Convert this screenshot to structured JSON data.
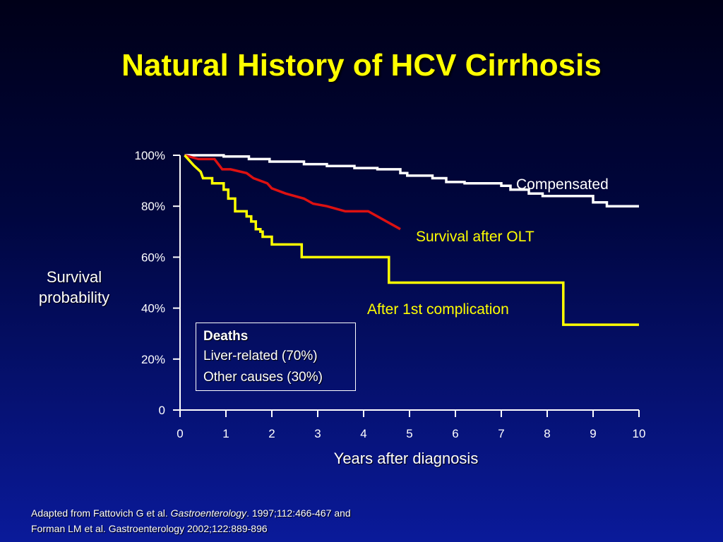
{
  "title": "Natural History of HCV Cirrhosis",
  "deaths_box": {
    "heading": "Deaths",
    "items": [
      "Liver-related (70%)",
      "Other causes (30%)"
    ]
  },
  "source": {
    "line1_prefix": "Adapted from Fattovich G et al. ",
    "line1_journal": "Gastroenterology",
    "line1_suffix": ". 1997;112:466-467 and",
    "line2": "Forman LM et al. Gastroenterology 2002;122:889-896"
  },
  "colors": {
    "title": "#ffff00",
    "compensated": "#ffffff",
    "olt": "#dd1111",
    "complication": "#ffff00",
    "axis": "#ffffff"
  },
  "chart_data": {
    "type": "line",
    "title": "Natural History of HCV Cirrhosis",
    "xlabel": "Years after diagnosis",
    "ylabel": "Survival probability",
    "xlim": [
      0,
      10
    ],
    "ylim": [
      0,
      100
    ],
    "x_ticks": [
      "0",
      "1",
      "2",
      "3",
      "4",
      "5",
      "6",
      "7",
      "8",
      "9",
      "10"
    ],
    "y_ticks": [
      {
        "value": 0,
        "label": "0"
      },
      {
        "value": 20,
        "label": "20%"
      },
      {
        "value": 40,
        "label": "40%"
      },
      {
        "value": 60,
        "label": "60%"
      },
      {
        "value": 80,
        "label": "80%"
      },
      {
        "value": 100,
        "label": "100%"
      }
    ],
    "grid": false,
    "series": [
      {
        "name": "Compensated",
        "color": "#ffffff",
        "label_color": "#ffffff",
        "step": true,
        "points": [
          [
            0.1,
            100
          ],
          [
            0.95,
            100
          ],
          [
            0.95,
            99.5
          ],
          [
            1.5,
            99.5
          ],
          [
            1.5,
            98.5
          ],
          [
            1.95,
            98.5
          ],
          [
            1.95,
            97.5
          ],
          [
            2.7,
            97.5
          ],
          [
            2.7,
            96.5
          ],
          [
            3.2,
            96.5
          ],
          [
            3.2,
            95.8
          ],
          [
            3.8,
            95.8
          ],
          [
            3.8,
            95
          ],
          [
            4.3,
            95
          ],
          [
            4.3,
            94.5
          ],
          [
            4.8,
            94.5
          ],
          [
            4.8,
            93
          ],
          [
            4.95,
            93
          ],
          [
            4.95,
            92
          ],
          [
            5.5,
            92
          ],
          [
            5.5,
            91
          ],
          [
            5.8,
            91
          ],
          [
            5.8,
            89.5
          ],
          [
            6.2,
            89.5
          ],
          [
            6.2,
            89
          ],
          [
            7.0,
            89
          ],
          [
            7.0,
            88
          ],
          [
            7.2,
            88
          ],
          [
            7.2,
            86.5
          ],
          [
            7.6,
            86.5
          ],
          [
            7.6,
            85
          ],
          [
            7.9,
            85
          ],
          [
            7.9,
            84
          ],
          [
            9.0,
            84
          ],
          [
            9.0,
            81.5
          ],
          [
            9.3,
            81.5
          ],
          [
            9.3,
            80
          ],
          [
            10.0,
            80
          ]
        ]
      },
      {
        "name": "Survival after OLT",
        "color": "#dd1111",
        "label_color": "#ffff00",
        "step": false,
        "points": [
          [
            0.1,
            100
          ],
          [
            0.4,
            98.5
          ],
          [
            0.75,
            98.5
          ],
          [
            0.92,
            94.5
          ],
          [
            1.1,
            94.5
          ],
          [
            1.45,
            93
          ],
          [
            1.6,
            91
          ],
          [
            1.9,
            89
          ],
          [
            2.0,
            87
          ],
          [
            2.3,
            85
          ],
          [
            2.7,
            83
          ],
          [
            2.9,
            81
          ],
          [
            3.2,
            80
          ],
          [
            3.4,
            79
          ],
          [
            3.6,
            78
          ],
          [
            4.1,
            78
          ],
          [
            4.8,
            71
          ]
        ]
      },
      {
        "name": "After 1st complication",
        "color": "#ffff00",
        "label_color": "#ffff00",
        "step": true,
        "points": [
          [
            0.1,
            100
          ],
          [
            0.2,
            98
          ],
          [
            0.3,
            96
          ],
          [
            0.45,
            93.5
          ],
          [
            0.5,
            91
          ],
          [
            0.7,
            91
          ],
          [
            0.7,
            89
          ],
          [
            0.95,
            89
          ],
          [
            0.95,
            86.5
          ],
          [
            1.05,
            86.5
          ],
          [
            1.05,
            83
          ],
          [
            1.2,
            83
          ],
          [
            1.2,
            78
          ],
          [
            1.45,
            78
          ],
          [
            1.45,
            76
          ],
          [
            1.55,
            76
          ],
          [
            1.55,
            74
          ],
          [
            1.65,
            74
          ],
          [
            1.65,
            71
          ],
          [
            1.75,
            71
          ],
          [
            1.75,
            70
          ],
          [
            1.8,
            70
          ],
          [
            1.8,
            68
          ],
          [
            2.0,
            68
          ],
          [
            2.0,
            65
          ],
          [
            2.65,
            65
          ],
          [
            2.65,
            60
          ],
          [
            4.55,
            60
          ],
          [
            4.55,
            50
          ],
          [
            8.35,
            50
          ],
          [
            8.35,
            33.5
          ],
          [
            10.0,
            33.5
          ]
        ]
      }
    ]
  }
}
